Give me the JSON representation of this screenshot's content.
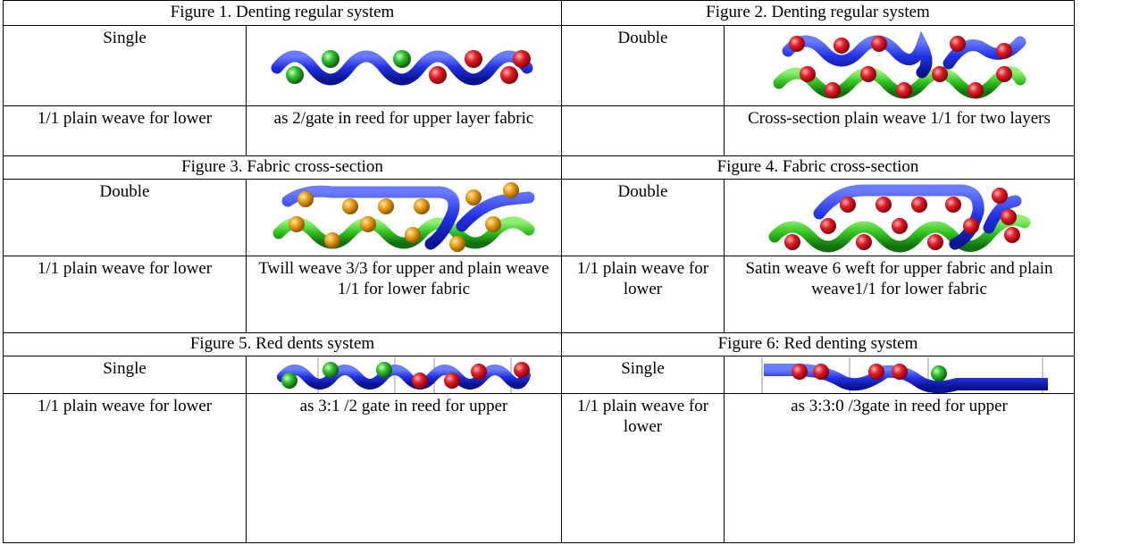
{
  "figures": [
    {
      "caption": "Figure 1. Denting regular system",
      "layer": "Single",
      "weave": "1/1 plain weave for lower",
      "description": "as 2/gate in reed for upper layer fabric"
    },
    {
      "caption": "Figure 2. Denting regular system",
      "layer": "Double",
      "description": "Cross-section plain weave 1/1 for two layers"
    },
    {
      "caption": "Figure 3. Fabric cross-section",
      "layer": "Double",
      "weave": "1/1 plain weave for lower",
      "description": "Twill weave 3/3 for upper and plain weave 1/1 for lower fabric"
    },
    {
      "caption": "Figure 4. Fabric cross-section",
      "layer": "Double",
      "weave": "1/1 plain weave for lower",
      "description": "Satin weave 6 weft for upper fabric and plain weave1/1 for lower fabric"
    },
    {
      "caption": "Figure 5. Red dents system",
      "layer": "Single",
      "weave": "1/1 plain weave for lower",
      "description": "as 3:1 /2 gate in reed for upper"
    },
    {
      "caption": "Figure 6: Red denting system",
      "layer": "Single",
      "weave": "1/1 plain weave for lower",
      "description": "as 3:3:0 /3gate in reed for upper"
    }
  ]
}
